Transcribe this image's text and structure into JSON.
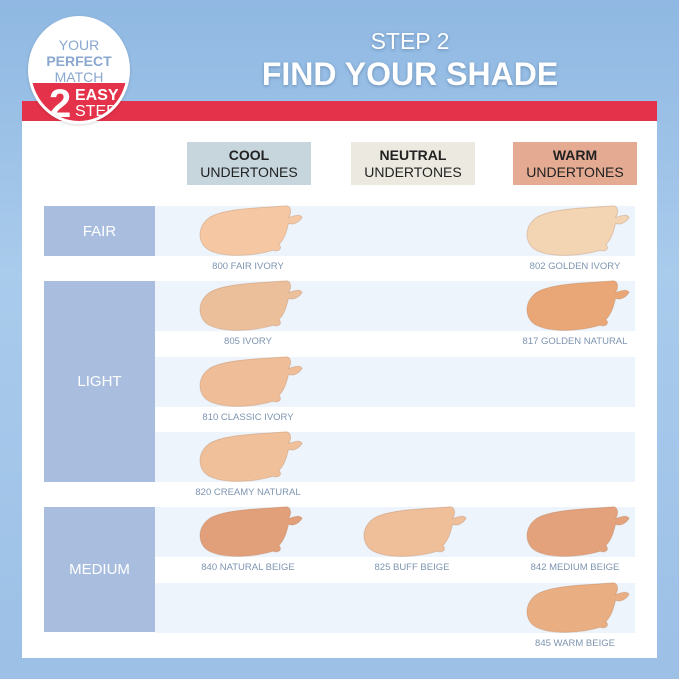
{
  "badge": {
    "line1": "YOUR",
    "line2": "PERFECT",
    "line3": "MATCH",
    "number": "2",
    "easy": "EASY",
    "steps": "STEPS"
  },
  "header": {
    "step": "STEP 2",
    "title": "FIND YOUR SHADE"
  },
  "columns": [
    {
      "bold": "COOL",
      "sub": "UNDERTONES",
      "color": "#c6d6dc"
    },
    {
      "bold": "NEUTRAL",
      "sub": "UNDERTONES",
      "color": "#eceae0"
    },
    {
      "bold": "WARM",
      "sub": "UNDERTONES",
      "color": "#e4ab92"
    }
  ],
  "groups": [
    {
      "label": "FAIR"
    },
    {
      "label": "LIGHT"
    },
    {
      "label": "MEDIUM"
    }
  ],
  "shades": [
    {
      "name": "800 FAIR IVORY",
      "row": 0,
      "col": 0,
      "color": "#f5c8a3"
    },
    {
      "name": "802 GOLDEN IVORY",
      "row": 0,
      "col": 2,
      "color": "#f3d4b3"
    },
    {
      "name": "805 IVORY",
      "row": 1,
      "col": 0,
      "color": "#ecbf9b"
    },
    {
      "name": "817 GOLDEN NATURAL",
      "row": 1,
      "col": 2,
      "color": "#e9a777"
    },
    {
      "name": "810 CLASSIC IVORY",
      "row": 2,
      "col": 0,
      "color": "#efbd97"
    },
    {
      "name": "820 CREAMY NATURAL",
      "row": 3,
      "col": 0,
      "color": "#efc09a"
    },
    {
      "name": "840 NATURAL BEIGE",
      "row": 4,
      "col": 0,
      "color": "#e2a07a"
    },
    {
      "name": "825 BUFF BEIGE",
      "row": 4,
      "col": 1,
      "color": "#efbf9a"
    },
    {
      "name": "842 MEDIUM BEIGE",
      "row": 4,
      "col": 2,
      "color": "#e3a27c"
    },
    {
      "name": "845 WARM BEIGE",
      "row": 5,
      "col": 2,
      "color": "#e9ae82"
    }
  ]
}
